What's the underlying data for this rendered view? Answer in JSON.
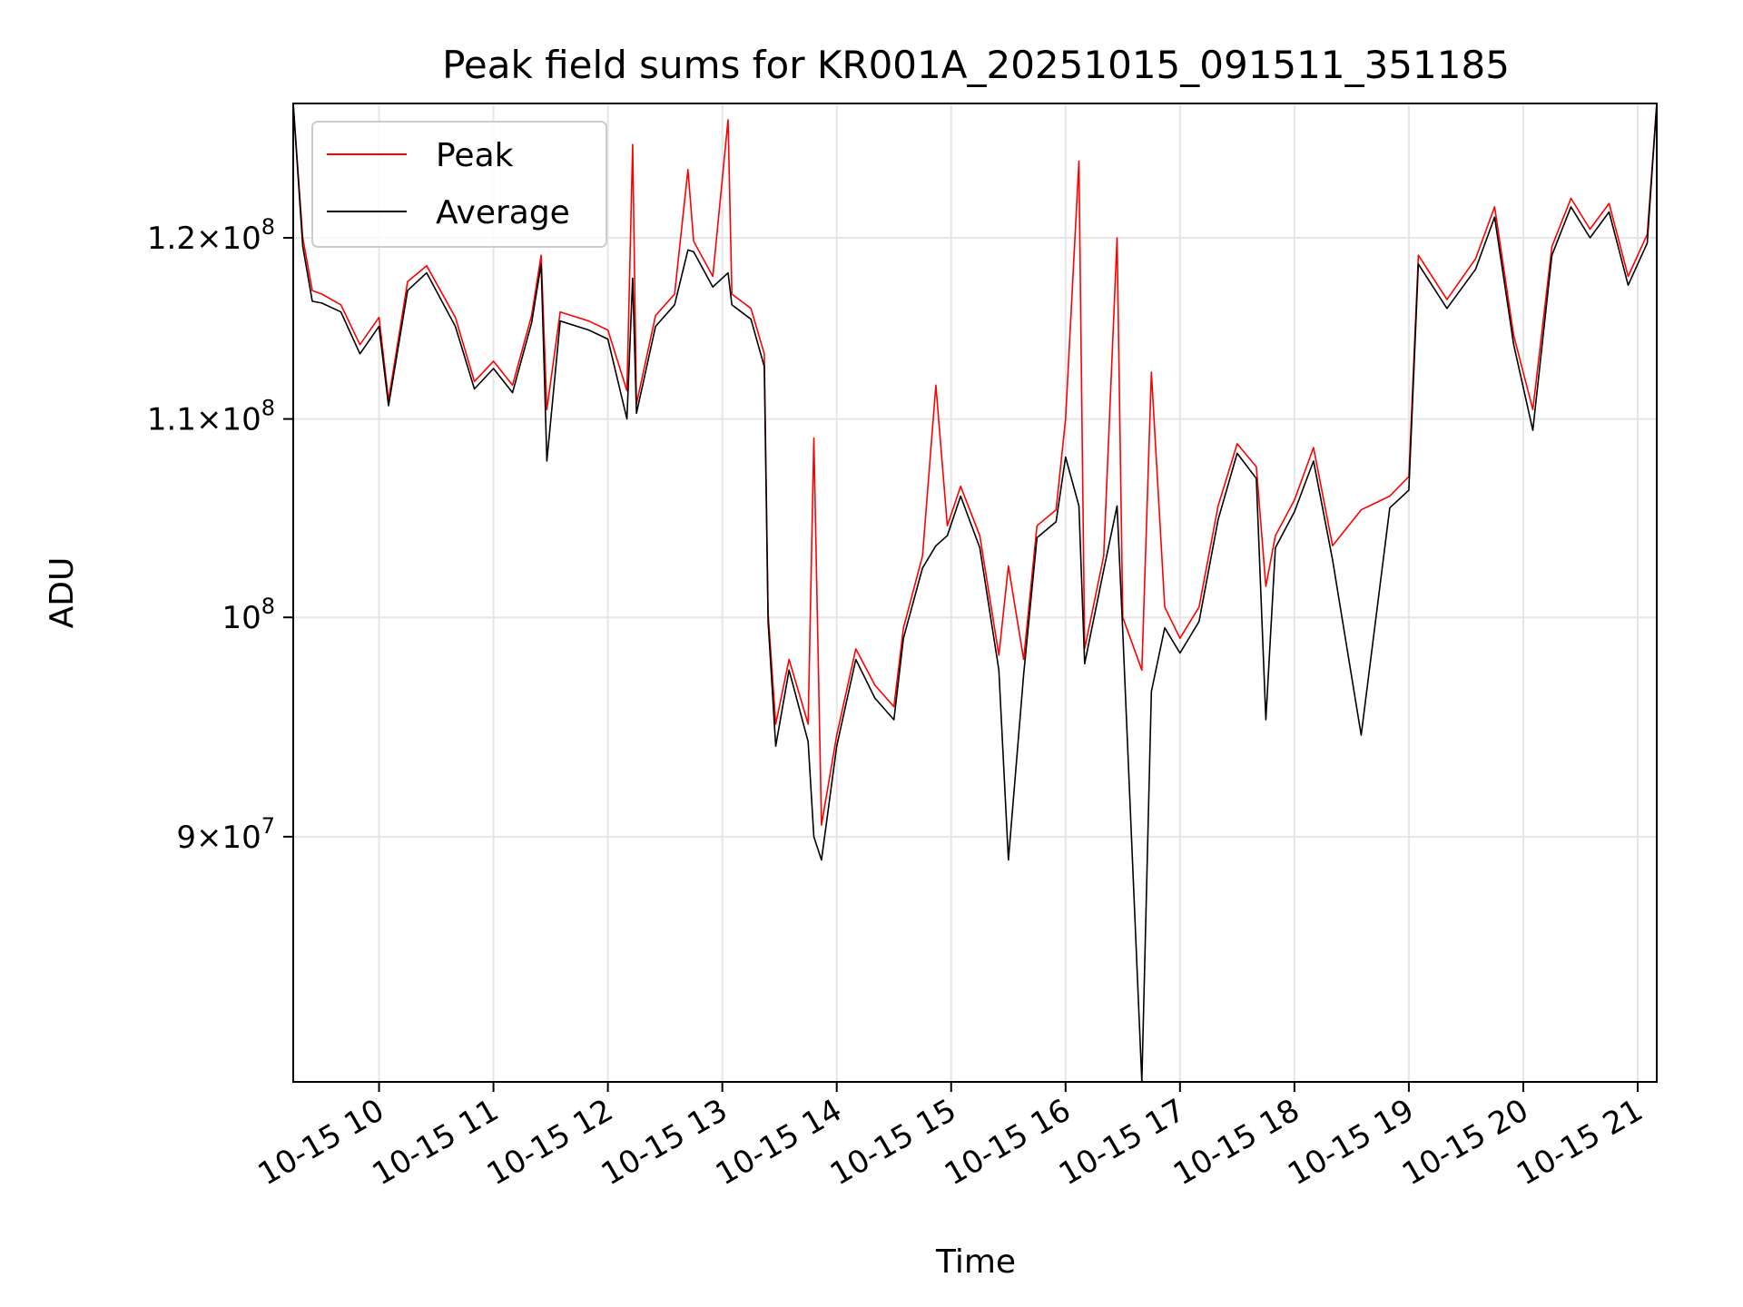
{
  "chart_data": {
    "type": "line",
    "title": "Peak field sums for KR001A_20251015_091511_351185",
    "xlabel": "Time",
    "ylabel": "ADU",
    "y_scale": "log",
    "xlim": [
      "2025-10-15T09:15",
      "2025-10-15T21:10"
    ],
    "ylim": [
      80000000,
      128000000
    ],
    "grid": true,
    "legend_position": "top-left",
    "x_tick_labels": [
      {
        "t": "2025-10-15T10:00",
        "label": "10-15 10"
      },
      {
        "t": "2025-10-15T11:00",
        "label": "10-15 11"
      },
      {
        "t": "2025-10-15T12:00",
        "label": "10-15 12"
      },
      {
        "t": "2025-10-15T13:00",
        "label": "10-15 13"
      },
      {
        "t": "2025-10-15T14:00",
        "label": "10-15 14"
      },
      {
        "t": "2025-10-15T15:00",
        "label": "10-15 15"
      },
      {
        "t": "2025-10-15T16:00",
        "label": "10-15 16"
      },
      {
        "t": "2025-10-15T17:00",
        "label": "10-15 17"
      },
      {
        "t": "2025-10-15T18:00",
        "label": "10-15 18"
      },
      {
        "t": "2025-10-15T19:00",
        "label": "10-15 19"
      },
      {
        "t": "2025-10-15T20:00",
        "label": "10-15 20"
      },
      {
        "t": "2025-10-15T21:00",
        "label": "10-15 21"
      }
    ],
    "y_ticks": [
      {
        "value": 90000000,
        "mantissa": "9",
        "exponent": "7"
      },
      {
        "value": 100000000,
        "mantissa": "",
        "exponent": "8"
      },
      {
        "value": 110000000,
        "mantissa": "1.1",
        "exponent": "8"
      },
      {
        "value": 120000000,
        "mantissa": "1.2",
        "exponent": "8"
      }
    ],
    "series": [
      {
        "name": "Peak",
        "color": "#ff0000",
        "points": [
          [
            "2025-10-15T09:15",
            128000000
          ],
          [
            "2025-10-15T09:20",
            120000000
          ],
          [
            "2025-10-15T09:25",
            117000000
          ],
          [
            "2025-10-15T09:30",
            116800000
          ],
          [
            "2025-10-15T09:40",
            116200000
          ],
          [
            "2025-10-15T09:50",
            114000000
          ],
          [
            "2025-10-15T10:00",
            115500000
          ],
          [
            "2025-10-15T10:05",
            111000000
          ],
          [
            "2025-10-15T10:15",
            117500000
          ],
          [
            "2025-10-15T10:25",
            118400000
          ],
          [
            "2025-10-15T10:40",
            115500000
          ],
          [
            "2025-10-15T10:50",
            112000000
          ],
          [
            "2025-10-15T11:00",
            113100000
          ],
          [
            "2025-10-15T11:10",
            111800000
          ],
          [
            "2025-10-15T11:20",
            115600000
          ],
          [
            "2025-10-15T11:25",
            119000000
          ],
          [
            "2025-10-15T11:28",
            110500000
          ],
          [
            "2025-10-15T11:35",
            115800000
          ],
          [
            "2025-10-15T11:50",
            115300000
          ],
          [
            "2025-10-15T12:00",
            114800000
          ],
          [
            "2025-10-15T12:10",
            111500000
          ],
          [
            "2025-10-15T12:13",
            125500000
          ],
          [
            "2025-10-15T12:15",
            110800000
          ],
          [
            "2025-10-15T12:25",
            115600000
          ],
          [
            "2025-10-15T12:35",
            116800000
          ],
          [
            "2025-10-15T12:42",
            124000000
          ],
          [
            "2025-10-15T12:45",
            119800000
          ],
          [
            "2025-10-15T12:55",
            117800000
          ],
          [
            "2025-10-15T13:03",
            127000000
          ],
          [
            "2025-10-15T13:05",
            116800000
          ],
          [
            "2025-10-15T13:15",
            116000000
          ],
          [
            "2025-10-15T13:22",
            113500000
          ],
          [
            "2025-10-15T13:24",
            100200000
          ],
          [
            "2025-10-15T13:28",
            95000000
          ],
          [
            "2025-10-15T13:35",
            98000000
          ],
          [
            "2025-10-15T13:45",
            95000000
          ],
          [
            "2025-10-15T13:48",
            109000000
          ],
          [
            "2025-10-15T13:52",
            90500000
          ],
          [
            "2025-10-15T14:00",
            94500000
          ],
          [
            "2025-10-15T14:10",
            98500000
          ],
          [
            "2025-10-15T14:20",
            96800000
          ],
          [
            "2025-10-15T14:30",
            95800000
          ],
          [
            "2025-10-15T14:35",
            99500000
          ],
          [
            "2025-10-15T14:45",
            103000000
          ],
          [
            "2025-10-15T14:52",
            111800000
          ],
          [
            "2025-10-15T14:58",
            104500000
          ],
          [
            "2025-10-15T15:05",
            106500000
          ],
          [
            "2025-10-15T15:15",
            104000000
          ],
          [
            "2025-10-15T15:25",
            98200000
          ],
          [
            "2025-10-15T15:30",
            102500000
          ],
          [
            "2025-10-15T15:38",
            98000000
          ],
          [
            "2025-10-15T15:45",
            104500000
          ],
          [
            "2025-10-15T15:55",
            105300000
          ],
          [
            "2025-10-15T16:00",
            110000000
          ],
          [
            "2025-10-15T16:07",
            124500000
          ],
          [
            "2025-10-15T16:10",
            98500000
          ],
          [
            "2025-10-15T16:20",
            103000000
          ],
          [
            "2025-10-15T16:27",
            120000000
          ],
          [
            "2025-10-15T16:30",
            100000000
          ],
          [
            "2025-10-15T16:40",
            97500000
          ],
          [
            "2025-10-15T16:45",
            112500000
          ],
          [
            "2025-10-15T16:52",
            100500000
          ],
          [
            "2025-10-15T17:00",
            99000000
          ],
          [
            "2025-10-15T17:10",
            100500000
          ],
          [
            "2025-10-15T17:20",
            105500000
          ],
          [
            "2025-10-15T17:30",
            108700000
          ],
          [
            "2025-10-15T17:40",
            107500000
          ],
          [
            "2025-10-15T17:45",
            101500000
          ],
          [
            "2025-10-15T17:50",
            104000000
          ],
          [
            "2025-10-15T18:00",
            105800000
          ],
          [
            "2025-10-15T18:10",
            108500000
          ],
          [
            "2025-10-15T18:20",
            103500000
          ],
          [
            "2025-10-15T18:35",
            105300000
          ],
          [
            "2025-10-15T18:50",
            106000000
          ],
          [
            "2025-10-15T19:00",
            107000000
          ],
          [
            "2025-10-15T19:05",
            119000000
          ],
          [
            "2025-10-15T19:20",
            116500000
          ],
          [
            "2025-10-15T19:35",
            118800000
          ],
          [
            "2025-10-15T19:45",
            121800000
          ],
          [
            "2025-10-15T19:55",
            114500000
          ],
          [
            "2025-10-15T20:05",
            110500000
          ],
          [
            "2025-10-15T20:15",
            119500000
          ],
          [
            "2025-10-15T20:25",
            122300000
          ],
          [
            "2025-10-15T20:35",
            120500000
          ],
          [
            "2025-10-15T20:45",
            122000000
          ],
          [
            "2025-10-15T20:55",
            117800000
          ],
          [
            "2025-10-15T21:05",
            120200000
          ],
          [
            "2025-10-15T21:10",
            128000000
          ]
        ]
      },
      {
        "name": "Average",
        "color": "#000000",
        "points": [
          [
            "2025-10-15T09:15",
            128000000
          ],
          [
            "2025-10-15T09:20",
            119500000
          ],
          [
            "2025-10-15T09:25",
            116400000
          ],
          [
            "2025-10-15T09:30",
            116300000
          ],
          [
            "2025-10-15T09:40",
            115800000
          ],
          [
            "2025-10-15T09:50",
            113500000
          ],
          [
            "2025-10-15T10:00",
            115000000
          ],
          [
            "2025-10-15T10:05",
            110700000
          ],
          [
            "2025-10-15T10:15",
            117000000
          ],
          [
            "2025-10-15T10:25",
            118000000
          ],
          [
            "2025-10-15T10:40",
            115000000
          ],
          [
            "2025-10-15T10:50",
            111600000
          ],
          [
            "2025-10-15T11:00",
            112700000
          ],
          [
            "2025-10-15T11:10",
            111400000
          ],
          [
            "2025-10-15T11:20",
            115200000
          ],
          [
            "2025-10-15T11:25",
            118500000
          ],
          [
            "2025-10-15T11:28",
            107800000
          ],
          [
            "2025-10-15T11:35",
            115300000
          ],
          [
            "2025-10-15T11:50",
            114800000
          ],
          [
            "2025-10-15T12:00",
            114300000
          ],
          [
            "2025-10-15T12:10",
            110000000
          ],
          [
            "2025-10-15T12:13",
            117700000
          ],
          [
            "2025-10-15T12:15",
            110300000
          ],
          [
            "2025-10-15T12:25",
            115000000
          ],
          [
            "2025-10-15T12:35",
            116200000
          ],
          [
            "2025-10-15T12:42",
            119300000
          ],
          [
            "2025-10-15T12:45",
            119200000
          ],
          [
            "2025-10-15T12:55",
            117200000
          ],
          [
            "2025-10-15T13:03",
            118000000
          ],
          [
            "2025-10-15T13:05",
            116200000
          ],
          [
            "2025-10-15T13:15",
            115400000
          ],
          [
            "2025-10-15T13:22",
            112800000
          ],
          [
            "2025-10-15T13:24",
            99800000
          ],
          [
            "2025-10-15T13:28",
            94000000
          ],
          [
            "2025-10-15T13:35",
            97500000
          ],
          [
            "2025-10-15T13:45",
            94200000
          ],
          [
            "2025-10-15T13:48",
            90000000
          ],
          [
            "2025-10-15T13:52",
            89000000
          ],
          [
            "2025-10-15T14:00",
            94000000
          ],
          [
            "2025-10-15T14:10",
            98000000
          ],
          [
            "2025-10-15T14:20",
            96200000
          ],
          [
            "2025-10-15T14:30",
            95200000
          ],
          [
            "2025-10-15T14:35",
            99000000
          ],
          [
            "2025-10-15T14:45",
            102400000
          ],
          [
            "2025-10-15T14:52",
            103500000
          ],
          [
            "2025-10-15T14:58",
            104000000
          ],
          [
            "2025-10-15T15:05",
            106000000
          ],
          [
            "2025-10-15T15:15",
            103400000
          ],
          [
            "2025-10-15T15:25",
            97500000
          ],
          [
            "2025-10-15T15:30",
            89000000
          ],
          [
            "2025-10-15T15:38",
            97300000
          ],
          [
            "2025-10-15T15:45",
            103900000
          ],
          [
            "2025-10-15T15:55",
            104700000
          ],
          [
            "2025-10-15T16:00",
            108000000
          ],
          [
            "2025-10-15T16:07",
            105500000
          ],
          [
            "2025-10-15T16:10",
            97800000
          ],
          [
            "2025-10-15T16:20",
            102300000
          ],
          [
            "2025-10-15T16:27",
            105500000
          ],
          [
            "2025-10-15T16:30",
            99300000
          ],
          [
            "2025-10-15T16:40",
            80000000
          ],
          [
            "2025-10-15T16:45",
            96500000
          ],
          [
            "2025-10-15T16:52",
            99500000
          ],
          [
            "2025-10-15T17:00",
            98300000
          ],
          [
            "2025-10-15T17:10",
            99800000
          ],
          [
            "2025-10-15T17:20",
            104800000
          ],
          [
            "2025-10-15T17:30",
            108200000
          ],
          [
            "2025-10-15T17:40",
            106900000
          ],
          [
            "2025-10-15T17:45",
            95200000
          ],
          [
            "2025-10-15T17:50",
            103400000
          ],
          [
            "2025-10-15T18:00",
            105200000
          ],
          [
            "2025-10-15T18:10",
            107800000
          ],
          [
            "2025-10-15T18:20",
            102800000
          ],
          [
            "2025-10-15T18:35",
            94500000
          ],
          [
            "2025-10-15T18:50",
            105400000
          ],
          [
            "2025-10-15T19:00",
            106300000
          ],
          [
            "2025-10-15T19:05",
            118500000
          ],
          [
            "2025-10-15T19:20",
            116000000
          ],
          [
            "2025-10-15T19:35",
            118200000
          ],
          [
            "2025-10-15T19:45",
            121200000
          ],
          [
            "2025-10-15T19:55",
            114000000
          ],
          [
            "2025-10-15T20:05",
            109400000
          ],
          [
            "2025-10-15T20:15",
            119000000
          ],
          [
            "2025-10-15T20:25",
            121800000
          ],
          [
            "2025-10-15T20:35",
            120000000
          ],
          [
            "2025-10-15T20:45",
            121500000
          ],
          [
            "2025-10-15T20:55",
            117300000
          ],
          [
            "2025-10-15T21:05",
            119700000
          ],
          [
            "2025-10-15T21:10",
            128000000
          ]
        ]
      }
    ]
  }
}
